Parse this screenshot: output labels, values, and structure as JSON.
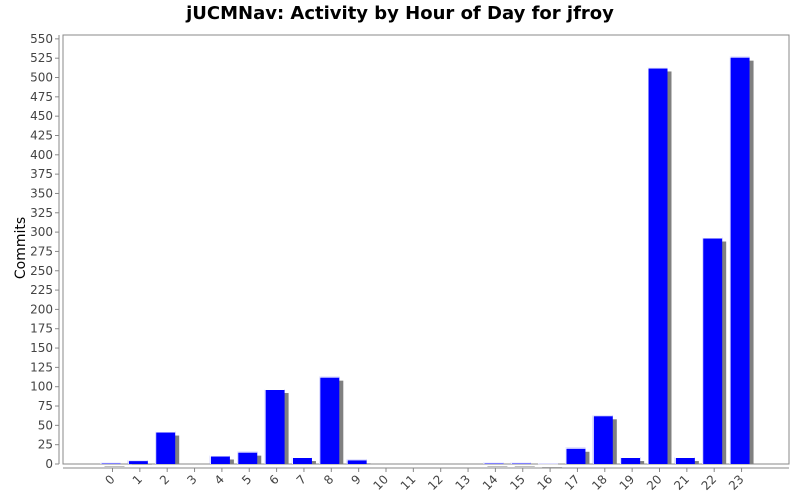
{
  "chart_data": {
    "type": "bar",
    "title": "jUCMNav: Activity by Hour of Day for jfroy",
    "xlabel": "",
    "ylabel": "Commits",
    "categories": [
      "0",
      "1",
      "2",
      "3",
      "4",
      "5",
      "6",
      "7",
      "8",
      "9",
      "10",
      "11",
      "12",
      "13",
      "14",
      "15",
      "16",
      "17",
      "18",
      "19",
      "20",
      "21",
      "22",
      "23"
    ],
    "values": [
      2,
      5,
      42,
      0,
      11,
      16,
      97,
      9,
      113,
      6,
      0,
      0,
      0,
      0,
      2,
      2,
      1,
      21,
      63,
      9,
      513,
      9,
      293,
      527
    ],
    "ylim": [
      0,
      555
    ],
    "yticks": [
      0,
      25,
      50,
      75,
      100,
      125,
      150,
      175,
      200,
      225,
      250,
      275,
      300,
      325,
      350,
      375,
      400,
      425,
      450,
      475,
      500,
      525,
      550
    ],
    "grid": false,
    "legend": "none",
    "colors": {
      "bar": "#0000ff",
      "bar_shadow": "#808080"
    }
  }
}
